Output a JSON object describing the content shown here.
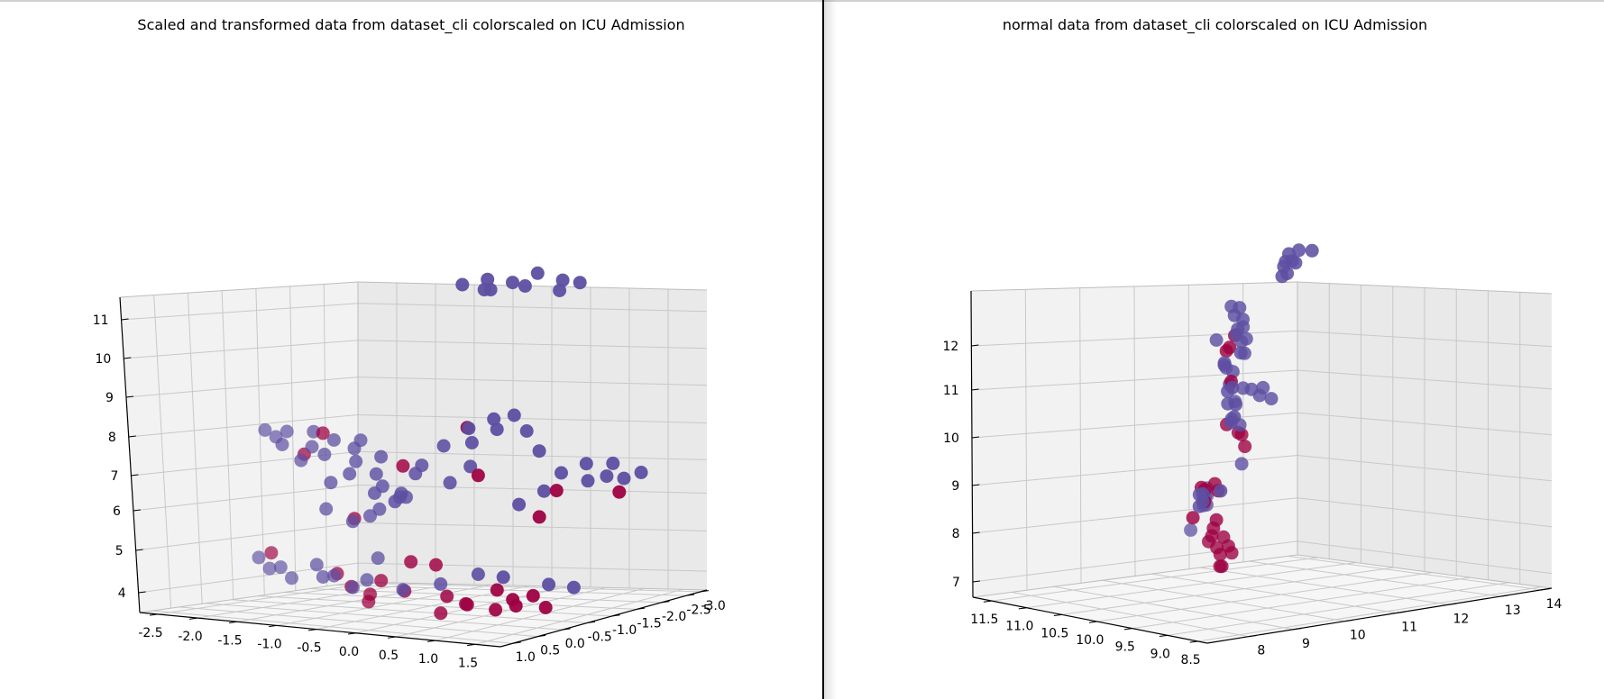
{
  "charts": [
    {
      "title": "Scaled and transformed data from dataset_cli colorscaled on ICU Admission",
      "z_ticks": [
        "11",
        "10",
        "9",
        "8",
        "7",
        "6",
        "5",
        "4"
      ],
      "x_ticks": [
        "-2.5",
        "-2.0",
        "-1.5",
        "-1.0",
        "-0.5",
        "0.0",
        "0.5",
        "1.0",
        "1.5"
      ],
      "y_ticks": [
        "1.0",
        "0.5",
        "0.0",
        "-0.5",
        "-1.0",
        "-1.5",
        "-2.0",
        "-2.5",
        "-3.0"
      ]
    },
    {
      "title": "normal data from dataset_cli colorscaled on ICU Admission",
      "z_ticks": [
        "12",
        "11",
        "10",
        "9",
        "8",
        "7"
      ],
      "x_ticks": [
        "11.5",
        "11.0",
        "10.5",
        "10.0",
        "9.5",
        "9.0",
        "8.5"
      ],
      "y_ticks": [
        "8",
        "9",
        "10",
        "11",
        "12",
        "13",
        "14"
      ]
    }
  ],
  "colors": {
    "no_icu": "#5e4fa2",
    "icu": "#9e0142",
    "pane_back": "#f2f2f2",
    "pane_side": "#e9e9e9",
    "pane_floor": "#f6f6f6",
    "grid": "#c8c8c8"
  },
  "chart_data": [
    {
      "type": "scatter",
      "projection": "3d",
      "title": "Scaled and transformed data from dataset_cli colorscaled on ICU Admission",
      "xlim": [
        -2.7,
        1.9
      ],
      "ylim": [
        -3.2,
        1.2
      ],
      "zlim": [
        3.6,
        11.3
      ],
      "colorscale": "ICU Admission",
      "grid": true,
      "series": [
        {
          "values": [
            [
              -2.3,
              -0.8,
              7.5
            ],
            [
              -2.1,
              -0.7,
              7.4
            ],
            [
              -1.9,
              -0.6,
              7.6
            ],
            [
              -1.7,
              -0.8,
              7.2
            ],
            [
              -1.5,
              -0.5,
              7.7
            ],
            [
              -1.6,
              -0.9,
              7.0
            ],
            [
              -1.9,
              -0.9,
              6.8
            ],
            [
              -2.2,
              -1.0,
              7.1
            ],
            [
              -1.3,
              -0.6,
              7.5
            ],
            [
              -1.1,
              -0.7,
              7.3
            ],
            [
              -0.9,
              -0.5,
              7.6
            ],
            [
              -0.7,
              -0.6,
              7.2
            ],
            [
              -1.2,
              -0.9,
              6.9
            ],
            [
              -1.0,
              -1.0,
              6.6
            ],
            [
              -0.8,
              -0.8,
              6.4
            ],
            [
              -1.4,
              -1.1,
              6.5
            ],
            [
              -1.7,
              -1.2,
              6.2
            ],
            [
              -1.2,
              -1.3,
              6.0
            ],
            [
              -1.0,
              -1.4,
              5.8
            ],
            [
              -0.8,
              -1.2,
              6.1
            ],
            [
              -0.5,
              -1.0,
              6.7
            ],
            [
              -0.3,
              -0.8,
              7.0
            ],
            [
              -0.2,
              -1.1,
              7.4
            ],
            [
              0.0,
              -1.3,
              7.8
            ],
            [
              0.2,
              -1.5,
              8.0
            ],
            [
              0.4,
              -1.6,
              8.1
            ],
            [
              0.3,
              -1.4,
              7.8
            ],
            [
              0.5,
              -1.7,
              7.7
            ],
            [
              0.1,
              -1.2,
              7.5
            ],
            [
              0.6,
              -1.8,
              7.2
            ],
            [
              0.2,
              -1.0,
              7.0
            ],
            [
              0.0,
              -0.9,
              6.6
            ],
            [
              -0.4,
              -0.5,
              6.3
            ],
            [
              -0.6,
              -0.4,
              6.0
            ],
            [
              -0.2,
              -0.3,
              6.4
            ],
            [
              -0.5,
              -2.0,
              11.0
            ],
            [
              -0.3,
              -2.2,
              11.1
            ],
            [
              -0.1,
              -2.4,
              11.0
            ],
            [
              0.1,
              -2.6,
              11.2
            ],
            [
              0.3,
              -2.8,
              11.0
            ],
            [
              -0.4,
              -2.3,
              10.8
            ],
            [
              0.0,
              -2.5,
              10.9
            ],
            [
              0.2,
              -2.9,
              10.7
            ],
            [
              0.4,
              -3.0,
              10.9
            ],
            [
              -0.2,
              -2.1,
              10.9
            ],
            [
              1.0,
              -1.6,
              6.8
            ],
            [
              1.2,
              -1.8,
              7.0
            ],
            [
              1.4,
              -1.9,
              6.7
            ],
            [
              1.5,
              -2.1,
              6.6
            ],
            [
              1.3,
              -2.2,
              6.9
            ],
            [
              1.1,
              -2.0,
              6.5
            ],
            [
              1.6,
              -2.3,
              6.7
            ],
            [
              0.9,
              -1.4,
              6.4
            ],
            [
              0.7,
              -1.2,
              6.1
            ],
            [
              -2.2,
              -0.5,
              4.5
            ],
            [
              -2.0,
              -0.4,
              4.3
            ],
            [
              -1.8,
              -0.3,
              4.4
            ],
            [
              -1.6,
              -0.2,
              4.2
            ],
            [
              -1.4,
              -0.4,
              4.5
            ],
            [
              -1.2,
              -0.2,
              4.3
            ],
            [
              -1.0,
              -0.1,
              4.4
            ],
            [
              -0.7,
              0.0,
              4.2
            ],
            [
              -0.4,
              0.2,
              4.5
            ],
            [
              0.0,
              0.1,
              4.3
            ],
            [
              0.3,
              -0.2,
              4.4
            ],
            [
              0.6,
              -0.5,
              4.6
            ],
            [
              0.8,
              -0.7,
              4.5
            ],
            [
              1.2,
              -1.0,
              4.3
            ],
            [
              1.4,
              -1.2,
              4.2
            ],
            [
              -1.4,
              -0.6,
              5.8
            ],
            [
              -1.0,
              -0.5,
              5.6
            ],
            [
              -0.6,
              -0.2,
              5.9
            ],
            [
              -0.2,
              0.3,
              5.1
            ]
          ],
          "color": "#5e4fa2"
        },
        {
          "values": [
            [
              -1.8,
              -0.8,
              7.0
            ],
            [
              -1.5,
              -0.7,
              7.6
            ],
            [
              -0.6,
              -0.9,
              6.9
            ],
            [
              0.3,
              -1.0,
              6.8
            ],
            [
              0.1,
              -1.1,
              7.9
            ],
            [
              -0.8,
              -0.2,
              5.8
            ],
            [
              1.0,
              -1.5,
              6.4
            ],
            [
              0.9,
              -1.3,
              5.8
            ],
            [
              1.5,
              -2.0,
              6.3
            ],
            [
              -2.1,
              -0.6,
              4.6
            ],
            [
              -0.9,
              0.0,
              4.5
            ],
            [
              -0.6,
              0.2,
              4.3
            ],
            [
              -0.3,
              0.3,
              4.2
            ],
            [
              -0.1,
              0.4,
              4.6
            ],
            [
              0.1,
              0.1,
              5.0
            ],
            [
              0.3,
              -0.1,
              4.9
            ],
            [
              0.5,
              0.0,
              4.2
            ],
            [
              0.7,
              -0.1,
              4.0
            ],
            [
              0.8,
              0.1,
              4.1
            ],
            [
              1.0,
              -0.2,
              3.9
            ],
            [
              1.2,
              -0.3,
              4.0
            ],
            [
              1.3,
              -0.5,
              4.2
            ],
            [
              1.4,
              -0.6,
              3.9
            ],
            [
              0.9,
              -0.4,
              4.3
            ],
            [
              0.6,
              0.3,
              3.9
            ],
            [
              0.2,
              0.4,
              4.4
            ],
            [
              -0.2,
              0.5,
              4.1
            ],
            [
              1.1,
              -0.4,
              4.1
            ]
          ],
          "color": "#9e0142"
        }
      ]
    },
    {
      "type": "scatter",
      "projection": "3d",
      "title": "normal data from dataset_cli colorscaled on ICU Admission",
      "xlim": [
        8.2,
        11.8
      ],
      "ylim": [
        7.5,
        14.5
      ],
      "zlim": [
        6.6,
        12.9
      ],
      "colorscale": "ICU Admission",
      "grid": true,
      "series": [
        {
          "values": [
            [
              10.2,
              10.3,
              11.7
            ],
            [
              10.0,
              10.5,
              12.1
            ],
            [
              9.8,
              10.7,
              12.3
            ],
            [
              9.6,
              10.9,
              12.4
            ],
            [
              9.5,
              11.2,
              12.3
            ],
            [
              9.4,
              11.4,
              12.0
            ],
            [
              9.6,
              11.0,
              11.8
            ],
            [
              10.1,
              10.1,
              11.5
            ],
            [
              9.9,
              10.4,
              11.3
            ],
            [
              10.3,
              9.9,
              11.0
            ],
            [
              10.5,
              9.8,
              10.8
            ],
            [
              10.4,
              9.9,
              10.5
            ],
            [
              10.2,
              10.1,
              10.3
            ],
            [
              10.0,
              10.3,
              10.6
            ],
            [
              9.8,
              10.6,
              10.9
            ],
            [
              9.7,
              10.8,
              11.1
            ],
            [
              9.3,
              11.5,
              11.5
            ],
            [
              9.1,
              11.8,
              11.7
            ],
            [
              9.0,
              12.0,
              11.4
            ],
            [
              9.2,
              11.7,
              11.2
            ],
            [
              9.9,
              10.2,
              11.9
            ],
            [
              10.6,
              9.6,
              11.2
            ],
            [
              10.4,
              9.7,
              11.6
            ],
            [
              9.7,
              11.8,
              12.9
            ],
            [
              9.5,
              12.1,
              13.0
            ],
            [
              9.3,
              12.4,
              13.0
            ],
            [
              9.1,
              12.8,
              12.9
            ],
            [
              8.9,
              13.2,
              13.0
            ],
            [
              9.4,
              12.3,
              12.8
            ],
            [
              9.0,
              13.0,
              12.8
            ],
            [
              8.8,
              13.6,
              12.9
            ],
            [
              9.2,
              12.6,
              13.1
            ],
            [
              11.3,
              8.0,
              9.2
            ],
            [
              11.2,
              8.2,
              9.4
            ],
            [
              11.0,
              8.4,
              9.3
            ],
            [
              11.4,
              8.3,
              9.5
            ],
            [
              10.9,
              8.6,
              9.1
            ],
            [
              8.9,
              11.9,
              10.1
            ],
            [
              8.8,
              12.2,
              10.3
            ],
            [
              8.7,
              12.5,
              10.2
            ],
            [
              8.6,
              12.8,
              10.0
            ],
            [
              9.0,
              11.7,
              9.8
            ],
            [
              8.9,
              12.0,
              9.6
            ],
            [
              8.5,
              13.0,
              10.1
            ],
            [
              8.4,
              13.3,
              9.8
            ],
            [
              8.7,
              12.3,
              8.7
            ],
            [
              9.6,
              10.4,
              8.4
            ],
            [
              9.4,
              10.6,
              8.3
            ],
            [
              9.2,
              10.9,
              8.4
            ],
            [
              9.0,
              11.2,
              8.3
            ],
            [
              9.3,
              10.8,
              8.6
            ],
            [
              8.9,
              11.0,
              7.6
            ]
          ],
          "color": "#5e4fa2"
        },
        {
          "values": [
            [
              10.1,
              10.2,
              11.8
            ],
            [
              9.6,
              10.8,
              11.5
            ],
            [
              9.9,
              10.5,
              11.0
            ],
            [
              9.2,
              11.5,
              11.6
            ],
            [
              10.9,
              8.4,
              8.8
            ],
            [
              10.7,
              8.9,
              9.0
            ],
            [
              10.5,
              9.1,
              9.2
            ],
            [
              10.4,
              9.3,
              9.1
            ],
            [
              9.0,
              11.6,
              9.7
            ],
            [
              8.8,
              12.1,
              9.4
            ],
            [
              8.7,
              12.3,
              9.3
            ],
            [
              8.6,
              12.5,
              9.0
            ],
            [
              9.8,
              10.3,
              8.9
            ],
            [
              9.7,
              10.5,
              8.7
            ],
            [
              9.9,
              10.2,
              8.2
            ],
            [
              9.3,
              10.9,
              7.6
            ],
            [
              9.1,
              11.1,
              7.4
            ],
            [
              9.0,
              11.4,
              7.2
            ],
            [
              8.9,
              11.6,
              7.0
            ],
            [
              8.8,
              11.8,
              7.3
            ],
            [
              9.2,
              11.2,
              6.9
            ],
            [
              9.0,
              11.5,
              6.8
            ],
            [
              8.7,
              12.1,
              6.9
            ],
            [
              8.8,
              11.9,
              7.1
            ],
            [
              9.4,
              10.8,
              7.8
            ]
          ],
          "color": "#9e0142"
        }
      ]
    }
  ]
}
